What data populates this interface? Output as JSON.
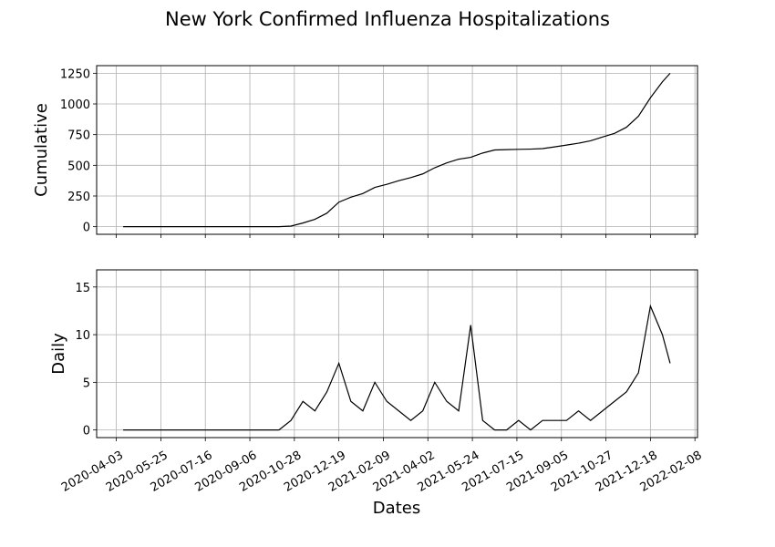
{
  "title": "New York Confirmed Influenza Hospitalizations",
  "chart_data": [
    {
      "type": "line",
      "y_label": "Cumulative",
      "color": "#000000",
      "grid": true,
      "xlim": [
        "2020-03-11",
        "2022-02-11"
      ],
      "ylim": [
        -62,
        1312
      ],
      "xticks": [
        "2020-04-03",
        "2020-05-25",
        "2020-07-16",
        "2020-09-06",
        "2020-10-28",
        "2020-12-19",
        "2021-02-09",
        "2021-04-02",
        "2021-05-24",
        "2021-07-15",
        "2021-09-05",
        "2021-10-27",
        "2021-12-18",
        "2022-02-08"
      ],
      "yticks": [
        0,
        250,
        500,
        750,
        1000,
        1250
      ],
      "x": [
        "2020-04-11",
        "2020-04-25",
        "2020-05-09",
        "2020-05-23",
        "2020-06-06",
        "2020-06-20",
        "2020-07-04",
        "2020-07-18",
        "2020-08-01",
        "2020-08-15",
        "2020-08-29",
        "2020-09-12",
        "2020-09-26",
        "2020-10-10",
        "2020-10-24",
        "2020-11-07",
        "2020-11-21",
        "2020-12-05",
        "2020-12-19",
        "2021-01-02",
        "2021-01-16",
        "2021-01-30",
        "2021-02-13",
        "2021-02-27",
        "2021-03-13",
        "2021-03-27",
        "2021-04-10",
        "2021-04-24",
        "2021-05-08",
        "2021-05-22",
        "2021-06-05",
        "2021-06-19",
        "2021-07-03",
        "2021-07-17",
        "2021-07-31",
        "2021-08-14",
        "2021-08-28",
        "2021-09-11",
        "2021-09-25",
        "2021-10-09",
        "2021-10-23",
        "2021-11-06",
        "2021-11-20",
        "2021-12-04",
        "2021-12-18",
        "2022-01-01",
        "2022-01-10"
      ],
      "values": [
        0,
        0,
        0,
        0,
        0,
        0,
        0,
        0,
        0,
        0,
        0,
        0,
        0,
        0,
        5,
        30,
        60,
        110,
        200,
        240,
        270,
        320,
        345,
        375,
        400,
        430,
        480,
        520,
        550,
        565,
        600,
        625,
        628,
        630,
        632,
        636,
        650,
        665,
        680,
        700,
        730,
        760,
        810,
        900,
        1050,
        1180,
        1250
      ]
    },
    {
      "type": "line",
      "y_label": "Daily",
      "x_label": "Dates",
      "color": "#000000",
      "grid": true,
      "xlim": [
        "2020-03-11",
        "2022-02-11"
      ],
      "ylim": [
        -0.8,
        16.8
      ],
      "xticks": [
        "2020-04-03",
        "2020-05-25",
        "2020-07-16",
        "2020-09-06",
        "2020-10-28",
        "2020-12-19",
        "2021-02-09",
        "2021-04-02",
        "2021-05-24",
        "2021-07-15",
        "2021-09-05",
        "2021-10-27",
        "2021-12-18",
        "2022-02-08"
      ],
      "yticks": [
        0,
        5,
        10,
        15
      ],
      "x": [
        "2020-04-11",
        "2020-04-25",
        "2020-05-09",
        "2020-05-23",
        "2020-06-06",
        "2020-06-20",
        "2020-07-04",
        "2020-07-18",
        "2020-08-01",
        "2020-08-15",
        "2020-08-29",
        "2020-09-12",
        "2020-09-26",
        "2020-10-10",
        "2020-10-24",
        "2020-11-07",
        "2020-11-21",
        "2020-12-05",
        "2020-12-19",
        "2021-01-02",
        "2021-01-16",
        "2021-01-30",
        "2021-02-13",
        "2021-02-27",
        "2021-03-13",
        "2021-03-27",
        "2021-04-10",
        "2021-04-24",
        "2021-05-08",
        "2021-05-22",
        "2021-06-05",
        "2021-06-19",
        "2021-07-03",
        "2021-07-17",
        "2021-07-31",
        "2021-08-14",
        "2021-08-28",
        "2021-09-11",
        "2021-09-25",
        "2021-10-09",
        "2021-10-23",
        "2021-11-06",
        "2021-11-20",
        "2021-12-04",
        "2021-12-18",
        "2022-01-01",
        "2022-01-10"
      ],
      "values": [
        0,
        0,
        0,
        0,
        0,
        0,
        0,
        0,
        0,
        0,
        0,
        0,
        0,
        0,
        1,
        3,
        2,
        4,
        7,
        3,
        2,
        5,
        3,
        2,
        1,
        2,
        5,
        3,
        2,
        11,
        1,
        0,
        0,
        1,
        0,
        1,
        1,
        1,
        2,
        1,
        2,
        3,
        4,
        6,
        13,
        10,
        7
      ]
    }
  ]
}
